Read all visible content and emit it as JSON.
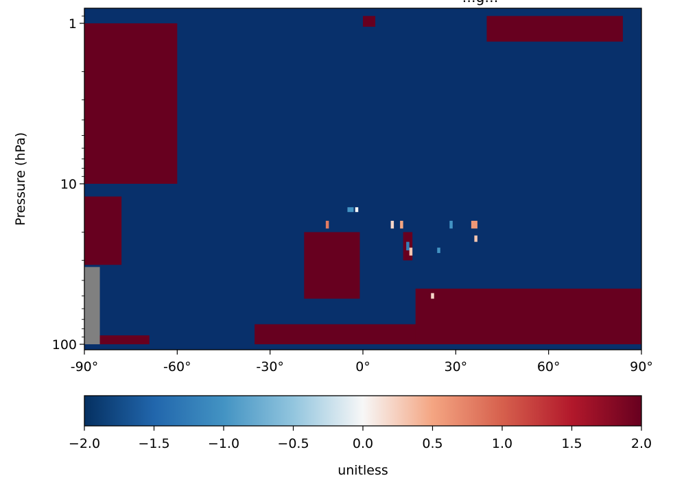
{
  "chart_data": {
    "type": "heatmap",
    "title": "…g…",
    "xlabel": "",
    "ylabel": "Pressure (hPa)",
    "x_range": [
      -90,
      90
    ],
    "y_range_hPa": [
      1,
      100
    ],
    "y_scale": "log",
    "y_inverted": true,
    "x_ticks": [
      -90,
      -60,
      -30,
      0,
      30,
      60,
      90
    ],
    "x_tick_labels": [
      "-90°",
      "-60°",
      "-30°",
      "0°",
      "30°",
      "60°",
      "90°"
    ],
    "y_ticks": [
      1,
      10,
      100
    ],
    "y_tick_labels": [
      "1",
      "10",
      "100"
    ],
    "colormap": "RdBu_r",
    "vmin": -2.0,
    "vmax": 2.0,
    "colorbar": {
      "orientation": "horizontal",
      "label": "unitless",
      "ticks": [
        -2.0,
        -1.5,
        -1.0,
        -0.5,
        0.0,
        0.5,
        1.0,
        1.5,
        2.0
      ],
      "tick_labels": [
        "−2.0",
        "−1.5",
        "−1.0",
        "−0.5",
        "0.0",
        "0.5",
        "1.0",
        "1.5",
        "2.0"
      ]
    },
    "missing_color": "#808080",
    "background_value": -2.0,
    "regions": [
      {
        "lat": [
          -90,
          -60
        ],
        "p": [
          1,
          10
        ],
        "value": 2.0,
        "note": "high-latitude south upper region, stair-stepped edge"
      },
      {
        "lat": [
          -90,
          -78
        ],
        "p": [
          12,
          32
        ],
        "value": 2.0
      },
      {
        "lat": [
          -90,
          -85
        ],
        "p": [
          33,
          100
        ],
        "value": "missing"
      },
      {
        "lat": [
          -85,
          -69
        ],
        "p": [
          88,
          100
        ],
        "value": 2.0
      },
      {
        "lat": [
          -19,
          -1
        ],
        "p": [
          20,
          52
        ],
        "value": 2.0
      },
      {
        "lat": [
          -35,
          20
        ],
        "p": [
          75,
          100
        ],
        "value": 2.0
      },
      {
        "lat": [
          0,
          4
        ],
        "p": [
          0.9,
          1.05
        ],
        "value": 2.0
      },
      {
        "lat": [
          13,
          16
        ],
        "p": [
          20,
          30
        ],
        "value": 2.0
      },
      {
        "lat": [
          17,
          90
        ],
        "p": [
          45,
          100
        ],
        "value": 2.0,
        "note": "northern lower region, stair-stepped edge"
      },
      {
        "lat": [
          40,
          84
        ],
        "p": [
          0.9,
          1.3
        ],
        "value": 2.0
      },
      {
        "lat": [
          -5,
          -3
        ],
        "p": [
          14,
          15
        ],
        "value": -1.0
      },
      {
        "lat": [
          -2.5,
          -1.5
        ],
        "p": [
          14,
          15
        ],
        "value": 0.0
      },
      {
        "lat": [
          -12,
          -11
        ],
        "p": [
          17,
          19
        ],
        "value": 0.8
      },
      {
        "lat": [
          9,
          10
        ],
        "p": [
          17,
          19
        ],
        "value": 0.2
      },
      {
        "lat": [
          12,
          13
        ],
        "p": [
          17,
          19
        ],
        "value": 0.5
      },
      {
        "lat": [
          14,
          15
        ],
        "p": [
          23,
          26
        ],
        "value": -1.2
      },
      {
        "lat": [
          15,
          16
        ],
        "p": [
          25,
          28
        ],
        "value": 0.3
      },
      {
        "lat": [
          22,
          23
        ],
        "p": [
          48,
          52
        ],
        "value": 0.2
      },
      {
        "lat": [
          24,
          25
        ],
        "p": [
          25,
          27
        ],
        "value": -1.0
      },
      {
        "lat": [
          28,
          29
        ],
        "p": [
          17,
          19
        ],
        "value": -1.0
      },
      {
        "lat": [
          35,
          37
        ],
        "p": [
          17,
          19
        ],
        "value": 0.6
      },
      {
        "lat": [
          36,
          37
        ],
        "p": [
          21,
          23
        ],
        "value": 0.3
      }
    ]
  }
}
